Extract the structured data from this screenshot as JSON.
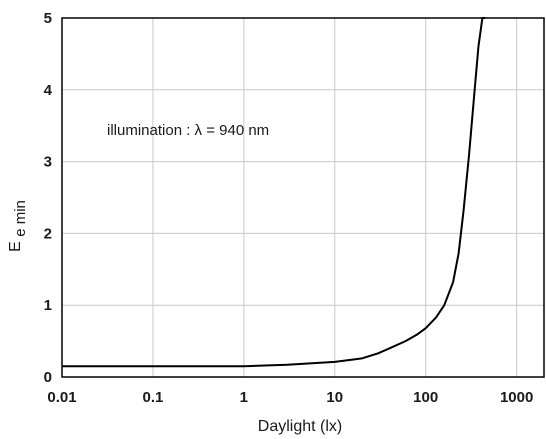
{
  "chart_data": {
    "type": "line",
    "title": "",
    "xlabel": "Daylight (lx)",
    "ylabel": "E",
    "ylabel_subscript": "e min",
    "x_scale": "log",
    "xlim": [
      0.01,
      2000
    ],
    "ylim": [
      0,
      5
    ],
    "grid": true,
    "x_ticks": [
      {
        "value": 0.01,
        "label": "0.01"
      },
      {
        "value": 0.1,
        "label": "0.1"
      },
      {
        "value": 1,
        "label": "1"
      },
      {
        "value": 10,
        "label": "10"
      },
      {
        "value": 100,
        "label": "100"
      },
      {
        "value": 1000,
        "label": "1000"
      }
    ],
    "y_ticks": [
      {
        "value": 0,
        "label": "0"
      },
      {
        "value": 1,
        "label": "1"
      },
      {
        "value": 2,
        "label": "2"
      },
      {
        "value": 3,
        "label": "3"
      },
      {
        "value": 4,
        "label": "4"
      },
      {
        "value": 5,
        "label": "5"
      }
    ],
    "annotation": "illumination : λ = 940 nm",
    "series": [
      {
        "color": "#000000",
        "x": [
          0.01,
          0.1,
          1,
          3,
          10,
          20,
          30,
          40,
          60,
          80,
          100,
          130,
          160,
          200,
          230,
          260,
          300,
          340,
          380,
          420,
          450
        ],
        "y": [
          0.15,
          0.15,
          0.15,
          0.17,
          0.21,
          0.26,
          0.33,
          0.4,
          0.5,
          0.59,
          0.68,
          0.83,
          1.0,
          1.32,
          1.72,
          2.3,
          3.1,
          3.9,
          4.6,
          5.0,
          5.0
        ]
      }
    ]
  }
}
